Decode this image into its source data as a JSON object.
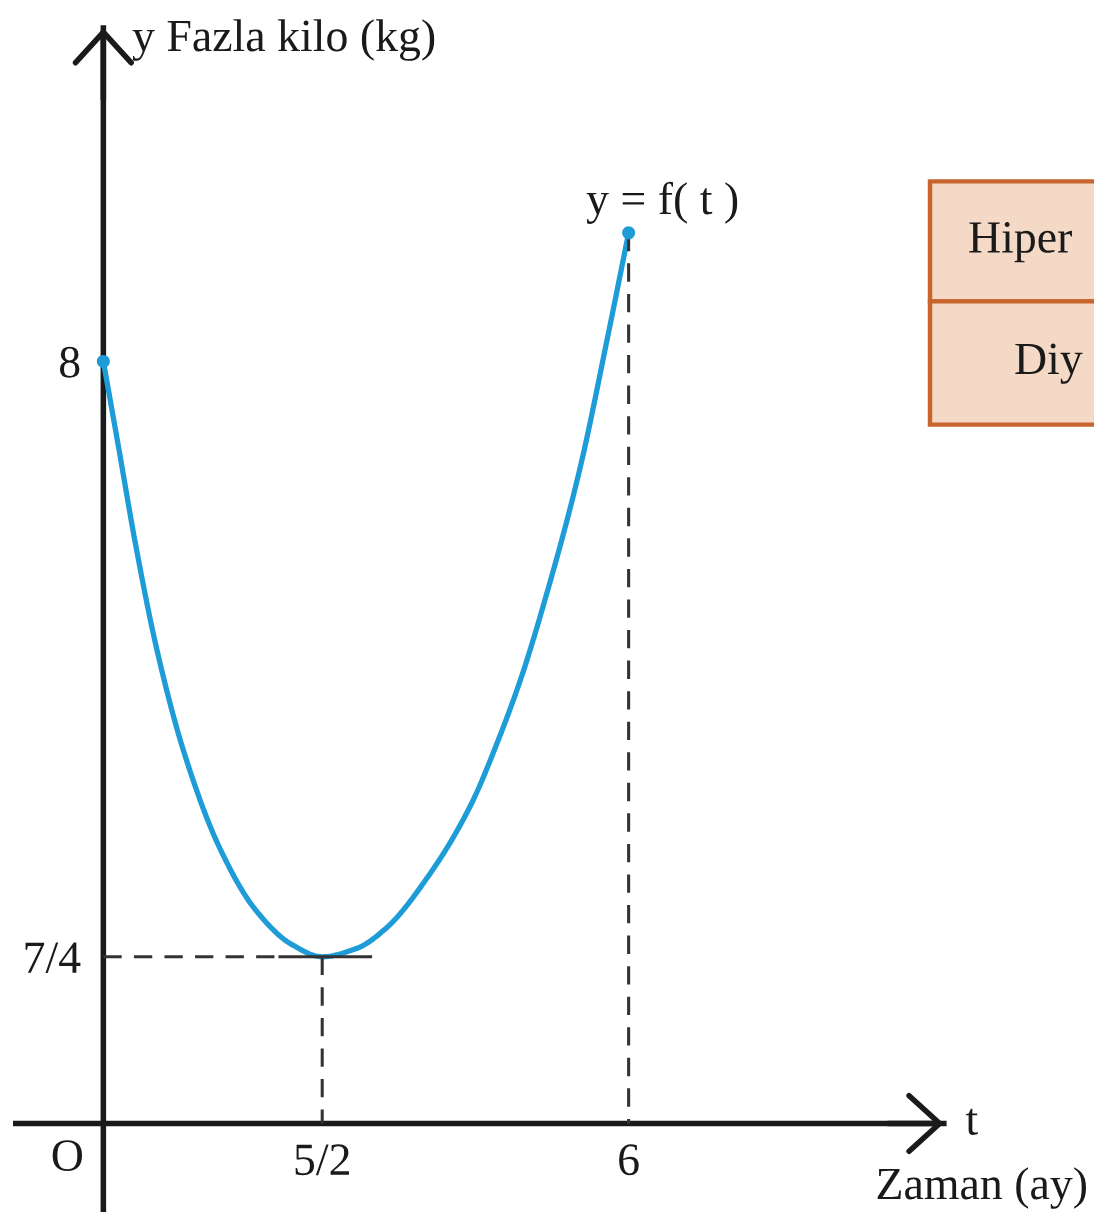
{
  "chart_data": {
    "type": "line",
    "xlabel": "Zaman (ay)",
    "ylabel": "y Fazla kilo (kg)",
    "xlim": [
      -1,
      9.6
    ],
    "ylim": [
      -0.9,
      11.5
    ],
    "xticks": [
      {
        "value": 2.5,
        "label": "5/2"
      },
      6
    ],
    "yticks": [
      {
        "value": 1.75,
        "label": "7/4"
      },
      8
    ],
    "series": [
      {
        "color": "#1e9cd7",
        "x": [
          0,
          0.17,
          0.37,
          0.61,
          0.92,
          1.33,
          1.74,
          2.15,
          2.5,
          2.9,
          3.23,
          3.73,
          4.19,
          4.53,
          4.78,
          5.02,
          5.44,
          5.77,
          6
        ],
        "values": [
          8,
          7.12,
          6.07,
          4.98,
          3.9,
          2.89,
          2.24,
          1.88,
          1.75,
          1.84,
          2.05,
          2.62,
          3.33,
          4.07,
          4.7,
          5.42,
          6.86,
          8.3,
          9.35
        ]
      },
      {
        "type": "scatter",
        "color": "#1e9cd7",
        "marker": "circle",
        "x": [
          0,
          6
        ],
        "values": [
          8,
          9.35
        ]
      },
      {
        "color": "#333333",
        "line_style": "dashed",
        "x": [
          0,
          2.0
        ],
        "values": [
          1.75,
          1.75
        ]
      },
      {
        "color": "#333333",
        "line_style": "solid",
        "x": [
          2.0,
          3.07
        ],
        "values": [
          1.75,
          1.75
        ]
      },
      {
        "color": "#333333",
        "line_style": "dashed",
        "x": [
          2.5,
          2.5
        ],
        "values": [
          1.75,
          0
        ]
      },
      {
        "color": "#333333",
        "line_style": "dashed",
        "x": [
          6,
          6
        ],
        "values": [
          9.35,
          0
        ]
      }
    ],
    "annotations": [
      {
        "text": "y = f( t )",
        "x": 6,
        "y": 9.35
      },
      "O",
      "t",
      "Hiper",
      "Diy"
    ]
  }
}
